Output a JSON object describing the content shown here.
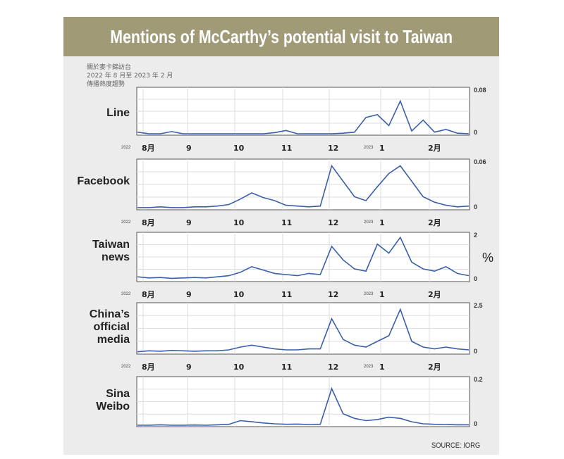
{
  "header": {
    "title": "Mentions of McCarthy’s potential visit to Taiwan"
  },
  "subtitle_zh": [
    "關於麥卡錦訪台",
    "2022 年 8 月至 2023 年 2 月",
    "傳播熱度趨勢"
  ],
  "unit_symbol": "%",
  "source": "SOURCE: IORG",
  "colors": {
    "header_bg": "#a09a76",
    "line": "#3a5fa8",
    "card_bg": "#ececec"
  },
  "x_axis": {
    "year_start": "2022",
    "year_end": "2023",
    "ticks": [
      "8月",
      "9",
      "10",
      "11",
      "12",
      "1",
      "2月"
    ]
  },
  "chart_data": [
    {
      "type": "line",
      "platform": "Line",
      "ylim_labels": [
        "0.08",
        "0"
      ],
      "ylim": [
        0,
        0.08
      ],
      "x": [
        0,
        1,
        2,
        3,
        4,
        5,
        6,
        7,
        8,
        9,
        10,
        11,
        12,
        13,
        14,
        15,
        16,
        17,
        18,
        19,
        20,
        21,
        22,
        23,
        24,
        25,
        26,
        27,
        28,
        29
      ],
      "values": [
        0.003,
        0,
        0,
        0.004,
        0,
        0,
        0,
        0,
        0,
        0,
        0,
        0,
        0.002,
        0.006,
        0,
        0,
        0,
        0,
        0.001,
        0.003,
        0.03,
        0.035,
        0.015,
        0.06,
        0.005,
        0.025,
        0.003,
        0.008,
        0.001,
        0
      ]
    },
    {
      "type": "line",
      "platform": "Facebook",
      "ylim_labels": [
        "0.06",
        "0"
      ],
      "ylim": [
        0,
        0.06
      ],
      "x": [
        0,
        1,
        2,
        3,
        4,
        5,
        6,
        7,
        8,
        9,
        10,
        11,
        12,
        13,
        14,
        15,
        16,
        17,
        18,
        19,
        20,
        21,
        22,
        23,
        24,
        25,
        26,
        27,
        28,
        29
      ],
      "values": [
        0.001,
        0.001,
        0.002,
        0.001,
        0.001,
        0.002,
        0.002,
        0.003,
        0.005,
        0.012,
        0.02,
        0.014,
        0.01,
        0.004,
        0.003,
        0.002,
        0.003,
        0.055,
        0.035,
        0.015,
        0.01,
        0.028,
        0.045,
        0.055,
        0.035,
        0.015,
        0.008,
        0.004,
        0.002,
        0.003
      ]
    },
    {
      "type": "line",
      "platform": "Taiwan news",
      "ylim_labels": [
        "2",
        "0"
      ],
      "ylim": [
        0,
        2
      ],
      "x": [
        0,
        1,
        2,
        3,
        4,
        5,
        6,
        7,
        8,
        9,
        10,
        11,
        12,
        13,
        14,
        15,
        16,
        17,
        18,
        19,
        20,
        21,
        22,
        23,
        24,
        25,
        26,
        27,
        28,
        29
      ],
      "values": [
        0.15,
        0.1,
        0.12,
        0.08,
        0.1,
        0.12,
        0.1,
        0.15,
        0.2,
        0.35,
        0.6,
        0.45,
        0.3,
        0.25,
        0.2,
        0.3,
        0.25,
        1.5,
        0.9,
        0.5,
        0.4,
        1.6,
        1.2,
        1.9,
        0.8,
        0.5,
        0.4,
        0.6,
        0.3,
        0.2
      ]
    },
    {
      "type": "line",
      "platform": "China’s official media",
      "ylim_labels": [
        "2.5",
        "0"
      ],
      "ylim": [
        0,
        2.5
      ],
      "x": [
        0,
        1,
        2,
        3,
        4,
        5,
        6,
        7,
        8,
        9,
        10,
        11,
        12,
        13,
        14,
        15,
        16,
        17,
        18,
        19,
        20,
        21,
        22,
        23,
        24,
        25,
        26,
        27,
        28,
        29
      ],
      "values": [
        0.05,
        0.1,
        0.08,
        0.12,
        0.1,
        0.08,
        0.1,
        0.1,
        0.15,
        0.3,
        0.4,
        0.3,
        0.2,
        0.15,
        0.15,
        0.2,
        0.2,
        1.8,
        0.7,
        0.4,
        0.3,
        0.6,
        0.9,
        2.3,
        0.6,
        0.3,
        0.2,
        0.3,
        0.2,
        0.15
      ]
    },
    {
      "type": "line",
      "platform": "Sina Weibo",
      "ylim_labels": [
        "0.2",
        "0"
      ],
      "ylim": [
        0,
        0.2
      ],
      "x": [
        0,
        1,
        2,
        3,
        4,
        5,
        6,
        7,
        8,
        9,
        10,
        11,
        12,
        13,
        14,
        15,
        16,
        17,
        18,
        19,
        20,
        21,
        22,
        23,
        24,
        25,
        26,
        27,
        28,
        29
      ],
      "values": [
        0,
        0,
        0.002,
        0,
        0,
        0.001,
        0,
        0.002,
        0.004,
        0.02,
        0.015,
        0.01,
        0.006,
        0.004,
        0.005,
        0.003,
        0.004,
        0.16,
        0.05,
        0.03,
        0.02,
        0.025,
        0.035,
        0.03,
        0.015,
        0.006,
        0.004,
        0.003,
        0.002,
        0.002
      ]
    }
  ]
}
